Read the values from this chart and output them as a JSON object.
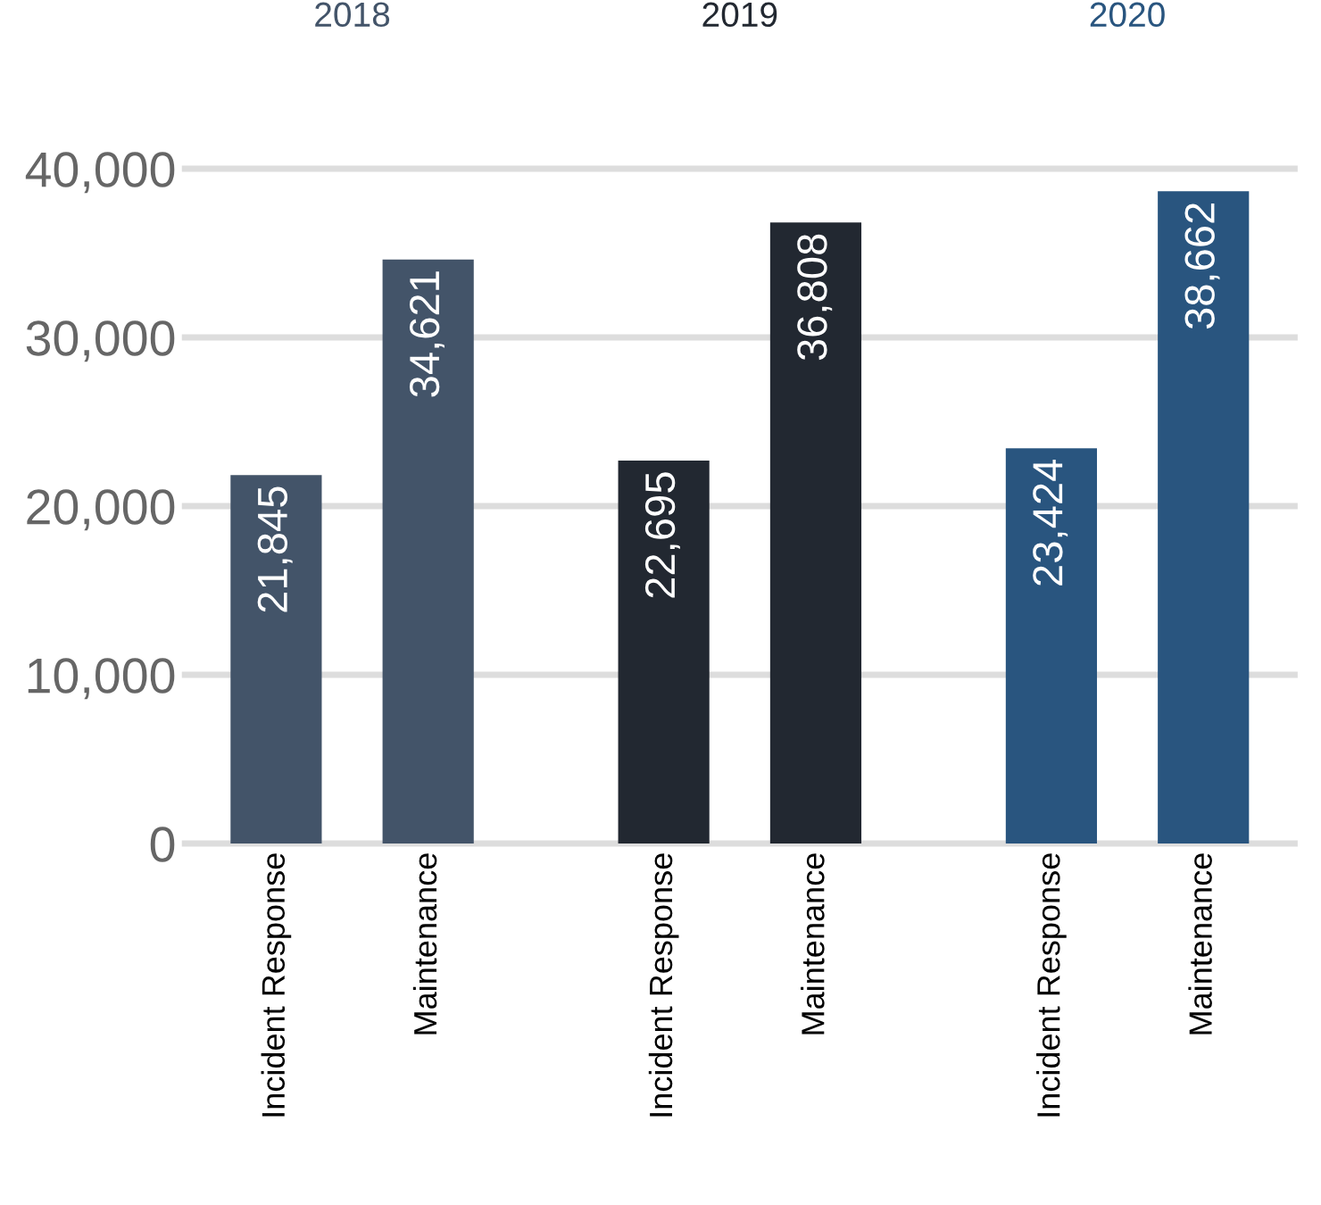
{
  "chart_data": {
    "type": "bar",
    "categories": [
      "Incident Response",
      "Maintenance",
      "Incident Response",
      "Maintenance",
      "Incident Response",
      "Maintenance"
    ],
    "series": [
      {
        "name": "2018",
        "color": "#435469",
        "values": [
          21845,
          34621,
          null,
          null,
          null,
          null
        ],
        "value_labels": [
          "21,845",
          "34,621",
          null,
          null,
          null,
          null
        ]
      },
      {
        "name": "2019",
        "color": "#222831",
        "values": [
          null,
          null,
          22695,
          36808,
          null,
          null
        ],
        "value_labels": [
          null,
          null,
          "22,695",
          "36,808",
          null,
          null
        ]
      },
      {
        "name": "2020",
        "color": "#29557f",
        "values": [
          null,
          null,
          null,
          null,
          23424,
          38662
        ],
        "value_labels": [
          null,
          null,
          null,
          null,
          "23,424",
          "38,662"
        ]
      }
    ],
    "ylim": [
      0,
      40000
    ],
    "yticks": [
      0,
      {
        "value": 10000,
        "label": "10,000"
      },
      {
        "value": 20000,
        "label": "20,000"
      },
      {
        "value": 30000,
        "label": "30,000"
      },
      {
        "value": 40000,
        "label": "40,000"
      }
    ],
    "grid": "y"
  }
}
